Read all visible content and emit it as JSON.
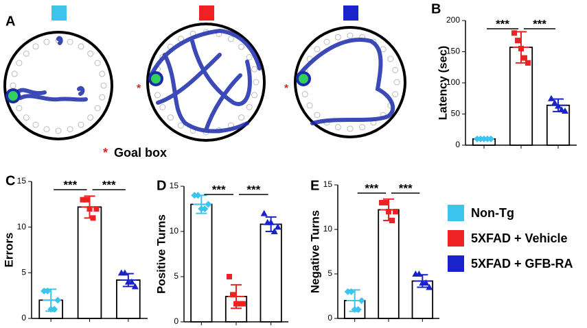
{
  "panel_a_label": "A",
  "goal_box": {
    "marker": "*",
    "label": "Goal box"
  },
  "groups": [
    {
      "name": "Non-Tg",
      "color": "#3cc4ec"
    },
    {
      "name": "5XFAD + Vehicle",
      "color": "#ee2222"
    },
    {
      "name": "5XFAD + GFB-RA",
      "color": "#1a22cc"
    }
  ],
  "chart_data": [
    {
      "type": "bar",
      "label": "B",
      "y_label": "Latency (sec)",
      "categories": [
        null,
        null,
        null
      ],
      "values": [
        10,
        157,
        64
      ],
      "errors": [
        1,
        25,
        10
      ],
      "points": [
        [
          10,
          10,
          10,
          10,
          10
        ],
        [
          180,
          168,
          155,
          140,
          132
        ],
        [
          75,
          68,
          63,
          57,
          55
        ]
      ],
      "ylim": [
        0,
        200
      ],
      "yticks": [
        0,
        50,
        100,
        150,
        200
      ],
      "significance": [
        "***",
        "***"
      ]
    },
    {
      "type": "bar",
      "label": "C",
      "y_label": "Errors",
      "categories": [
        null,
        null,
        null
      ],
      "values": [
        2,
        12.2,
        4.2
      ],
      "errors": [
        1.2,
        1.2,
        0.7
      ],
      "points": [
        [
          3,
          3,
          1,
          1,
          2
        ],
        [
          13,
          13,
          12,
          11,
          12
        ],
        [
          5,
          5,
          4,
          4,
          3.5
        ]
      ],
      "ylim": [
        0,
        15
      ],
      "yticks": [
        0,
        5,
        10,
        15
      ],
      "significance": [
        "***",
        "***"
      ]
    },
    {
      "type": "bar",
      "label": "D",
      "y_label": "Positive Turns",
      "categories": [
        null,
        null,
        null
      ],
      "values": [
        13,
        2.8,
        10.8
      ],
      "errors": [
        1,
        1.3,
        0.8
      ],
      "points": [
        [
          14,
          14,
          12.5,
          12.5,
          13
        ],
        [
          5,
          3,
          2,
          2,
          2
        ],
        [
          12,
          11,
          11,
          10,
          10.5
        ]
      ],
      "ylim": [
        0,
        15
      ],
      "yticks": [
        0,
        5,
        10,
        15
      ],
      "significance": [
        "***",
        "***"
      ]
    },
    {
      "type": "bar",
      "label": "E",
      "y_label": "Negative Turns",
      "categories": [
        null,
        null,
        null
      ],
      "values": [
        2,
        12.2,
        4.2
      ],
      "errors": [
        1.2,
        1.2,
        0.7
      ],
      "points": [
        [
          3,
          3,
          1,
          1,
          2
        ],
        [
          13,
          13,
          12,
          11,
          12
        ],
        [
          5,
          5,
          4,
          4,
          3.5
        ]
      ],
      "ylim": [
        0,
        15
      ],
      "yticks": [
        0,
        5,
        10,
        15
      ],
      "significance": [
        "***",
        "***"
      ]
    }
  ]
}
